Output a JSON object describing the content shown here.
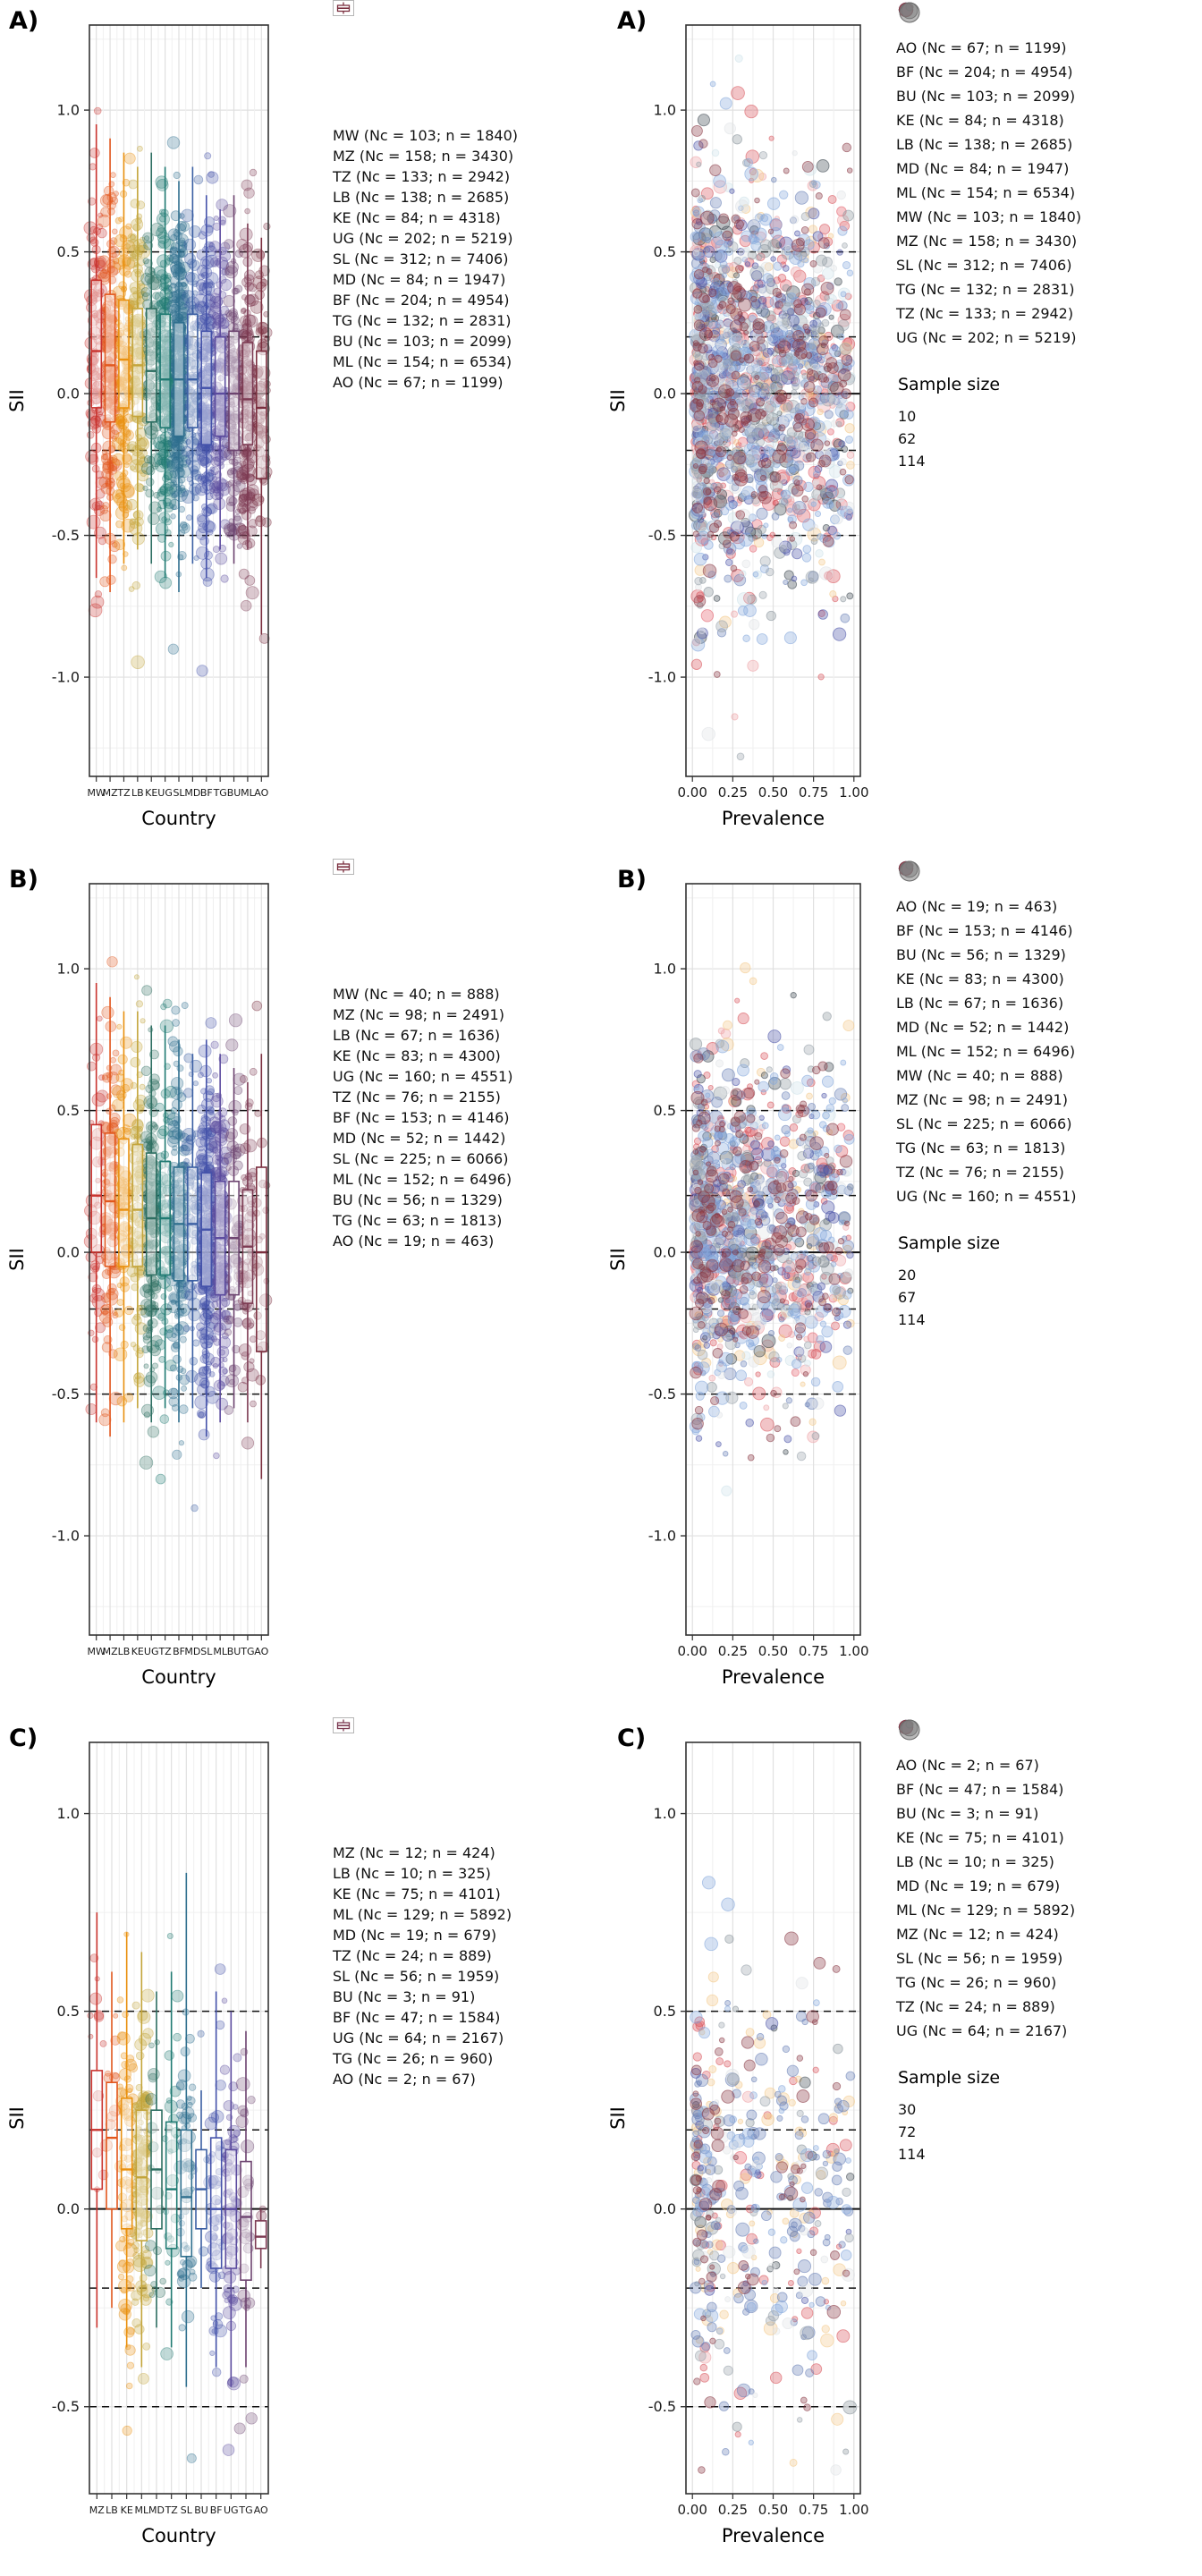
{
  "style": {
    "background": "#ffffff",
    "panel_border": "#333333",
    "grid_major": "#e0e0e0",
    "grid_minor": "#f0f0f0",
    "ref_line": "#111111",
    "text": "#1a1a1a",
    "size_legend_fill": "#808080",
    "box_colors": [
      "#c9342f",
      "#e2571d",
      "#e99110",
      "#c3a43a",
      "#2e6f62",
      "#1f7a72",
      "#2f6f8e",
      "#3b5fa3",
      "#4452aa",
      "#5b4b9e",
      "#6d4470",
      "#7c3a52",
      "#7b2f3f"
    ],
    "country_colors": {
      "AO": "#e4606d",
      "BF": "#d9575e",
      "BU": "#eda2a6",
      "KE": "#f3c98b",
      "LB": "#3f4a52",
      "MD": "#8a949c",
      "ML": "#6b82b8",
      "MW": "#cfe3ea",
      "MZ": "#4d55a8",
      "SL": "#86a8dc",
      "TG": "#dfe3e6",
      "TZ": "#9aa3ab",
      "UG": "#8a3a46"
    }
  },
  "chart_data": [
    {
      "id": "A",
      "panel_label": "A)",
      "type": "box+scatter",
      "ylabel": "SII",
      "ylim": [
        -1.35,
        1.3
      ],
      "yticks": [
        {
          "v": 1.0,
          "t": "1.0"
        },
        {
          "v": 0.5,
          "t": "0.5"
        },
        {
          "v": 0.0,
          "t": "0.0"
        },
        {
          "v": -0.5,
          "t": "-0.5"
        },
        {
          "v": -1.0,
          "t": "-1.0"
        }
      ],
      "ref_dashed": [
        0.5,
        0.2,
        -0.2,
        -0.5
      ],
      "ref_solid": 0,
      "box": {
        "xlabel": "Country"
      },
      "scatter": {
        "xlabel": "Prevalence",
        "xticks": [
          {
            "v": 0.0,
            "t": "0.00"
          },
          {
            "v": 0.25,
            "t": "0.25"
          },
          {
            "v": 0.5,
            "t": "0.50"
          },
          {
            "v": 0.75,
            "t": "0.75"
          },
          {
            "v": 1.0,
            "t": "1.00"
          }
        ],
        "order": [
          "AO",
          "BF",
          "BU",
          "KE",
          "LB",
          "MD",
          "ML",
          "MW",
          "MZ",
          "SL",
          "TG",
          "TZ",
          "UG"
        ]
      },
      "size_legend": {
        "title": "Sample size",
        "values": [
          "10",
          "62",
          "114"
        ],
        "numeric": [
          10,
          62,
          114
        ]
      },
      "countries": [
        {
          "code": "MW",
          "nc": 103,
          "n": 1840,
          "label": "MW (Nc = 103; n = 1840)",
          "box": [
            -0.65,
            -0.05,
            0.15,
            0.4,
            0.95
          ]
        },
        {
          "code": "MZ",
          "nc": 158,
          "n": 3430,
          "label": "MZ (Nc = 158; n = 3430)",
          "box": [
            -0.7,
            -0.1,
            0.1,
            0.35,
            0.9
          ]
        },
        {
          "code": "TZ",
          "nc": 133,
          "n": 2942,
          "label": "TZ (Nc = 133; n = 2942)",
          "box": [
            -0.6,
            -0.05,
            0.12,
            0.33,
            0.85
          ]
        },
        {
          "code": "LB",
          "nc": 138,
          "n": 2685,
          "label": "LB (Nc = 138; n = 2685)",
          "box": [
            -0.55,
            -0.08,
            0.1,
            0.3,
            0.8
          ]
        },
        {
          "code": "KE",
          "nc": 84,
          "n": 4318,
          "label": "KE (Nc = 84; n = 4318)",
          "box": [
            -0.6,
            -0.1,
            0.08,
            0.3,
            0.85
          ]
        },
        {
          "code": "UG",
          "nc": 202,
          "n": 5219,
          "label": "UG (Nc = 202; n = 5219)",
          "box": [
            -0.65,
            -0.12,
            0.05,
            0.28,
            0.8
          ]
        },
        {
          "code": "SL",
          "nc": 312,
          "n": 7406,
          "label": "SL (Nc = 312; n = 7406)",
          "box": [
            -0.7,
            -0.15,
            0.05,
            0.25,
            0.75
          ]
        },
        {
          "code": "MD",
          "nc": 84,
          "n": 1947,
          "label": "MD (Nc = 84; n = 1947)",
          "box": [
            -0.6,
            -0.12,
            0.05,
            0.28,
            0.8
          ]
        },
        {
          "code": "BF",
          "nc": 204,
          "n": 4954,
          "label": "BF (Nc = 204; n = 4954)",
          "box": [
            -0.65,
            -0.18,
            0.02,
            0.22,
            0.7
          ]
        },
        {
          "code": "TG",
          "nc": 132,
          "n": 2831,
          "label": "TG (Nc = 132; n = 2831)",
          "box": [
            -0.55,
            -0.15,
            0.0,
            0.2,
            0.65
          ]
        },
        {
          "code": "BU",
          "nc": 103,
          "n": 2099,
          "label": "BU (Nc = 103; n = 2099)",
          "box": [
            -0.6,
            -0.2,
            0.0,
            0.22,
            0.7
          ]
        },
        {
          "code": "ML",
          "nc": 154,
          "n": 6534,
          "label": "ML (Nc = 154; n = 6534)",
          "box": [
            -0.55,
            -0.18,
            -0.02,
            0.18,
            0.6
          ]
        },
        {
          "code": "AO",
          "nc": 67,
          "n": 1199,
          "label": "AO (Nc = 67; n = 1199)",
          "box": [
            -0.85,
            -0.3,
            -0.05,
            0.15,
            0.55
          ]
        }
      ]
    },
    {
      "id": "B",
      "panel_label": "B)",
      "type": "box+scatter",
      "ylabel": "SII",
      "ylim": [
        -1.35,
        1.3
      ],
      "yticks": [
        {
          "v": 1.0,
          "t": "1.0"
        },
        {
          "v": 0.5,
          "t": "0.5"
        },
        {
          "v": 0.0,
          "t": "0.0"
        },
        {
          "v": -0.5,
          "t": "-0.5"
        },
        {
          "v": -1.0,
          "t": "-1.0"
        }
      ],
      "ref_dashed": [
        0.5,
        0.2,
        -0.2,
        -0.5
      ],
      "ref_solid": 0,
      "box": {
        "xlabel": "Country"
      },
      "scatter": {
        "xlabel": "Prevalence",
        "xticks": [
          {
            "v": 0.0,
            "t": "0.00"
          },
          {
            "v": 0.25,
            "t": "0.25"
          },
          {
            "v": 0.5,
            "t": "0.50"
          },
          {
            "v": 0.75,
            "t": "0.75"
          },
          {
            "v": 1.0,
            "t": "1.00"
          }
        ],
        "order": [
          "AO",
          "BF",
          "BU",
          "KE",
          "LB",
          "MD",
          "ML",
          "MW",
          "MZ",
          "SL",
          "TG",
          "TZ",
          "UG"
        ]
      },
      "size_legend": {
        "title": "Sample size",
        "values": [
          "20",
          "67",
          "114"
        ],
        "numeric": [
          20,
          67,
          114
        ]
      },
      "countries": [
        {
          "code": "MW",
          "nc": 40,
          "n": 888,
          "label": "MW (Nc = 40; n = 888)",
          "box": [
            -0.6,
            0.0,
            0.2,
            0.45,
            0.95
          ]
        },
        {
          "code": "MZ",
          "nc": 98,
          "n": 2491,
          "label": "MZ (Nc = 98; n = 2491)",
          "box": [
            -0.65,
            -0.05,
            0.18,
            0.42,
            0.9
          ]
        },
        {
          "code": "LB",
          "nc": 67,
          "n": 1636,
          "label": "LB (Nc = 67; n = 1636)",
          "box": [
            -0.6,
            -0.05,
            0.15,
            0.4,
            0.85
          ]
        },
        {
          "code": "KE",
          "nc": 83,
          "n": 4300,
          "label": "KE (Nc = 83; n = 4300)",
          "box": [
            -0.55,
            -0.05,
            0.15,
            0.38,
            0.85
          ]
        },
        {
          "code": "UG",
          "nc": 160,
          "n": 4551,
          "label": "UG (Nc = 160; n = 4551)",
          "box": [
            -0.6,
            -0.08,
            0.12,
            0.35,
            0.8
          ]
        },
        {
          "code": "TZ",
          "nc": 76,
          "n": 2155,
          "label": "TZ (Nc = 76; n = 2155)",
          "box": [
            -0.55,
            -0.08,
            0.12,
            0.32,
            0.8
          ]
        },
        {
          "code": "BF",
          "nc": 153,
          "n": 4146,
          "label": "BF (Nc = 153; n = 4146)",
          "box": [
            -0.6,
            -0.1,
            0.1,
            0.3,
            0.75
          ]
        },
        {
          "code": "MD",
          "nc": 52,
          "n": 1442,
          "label": "MD (Nc = 52; n = 1442)",
          "box": [
            -0.55,
            -0.1,
            0.1,
            0.3,
            0.7
          ]
        },
        {
          "code": "SL",
          "nc": 225,
          "n": 6066,
          "label": "SL (Nc = 225; n = 6066)",
          "box": [
            -0.65,
            -0.12,
            0.08,
            0.28,
            0.75
          ]
        },
        {
          "code": "ML",
          "nc": 152,
          "n": 6496,
          "label": "ML (Nc = 152; n = 6496)",
          "box": [
            -0.6,
            -0.15,
            0.05,
            0.25,
            0.7
          ]
        },
        {
          "code": "BU",
          "nc": 56,
          "n": 1329,
          "label": "BU (Nc = 56; n = 1329)",
          "box": [
            -0.55,
            -0.15,
            0.05,
            0.25,
            0.65
          ]
        },
        {
          "code": "TG",
          "nc": 63,
          "n": 1813,
          "label": "TG (Nc = 63; n = 1813)",
          "box": [
            -0.6,
            -0.18,
            0.02,
            0.22,
            0.6
          ]
        },
        {
          "code": "AO",
          "nc": 19,
          "n": 463,
          "label": "AO (Nc = 19; n = 463)",
          "box": [
            -0.8,
            -0.35,
            0.0,
            0.3,
            0.7
          ]
        }
      ]
    },
    {
      "id": "C",
      "panel_label": "C)",
      "type": "box+scatter",
      "ylabel": "SII",
      "ylim": [
        -0.72,
        1.18
      ],
      "yticks": [
        {
          "v": 1.0,
          "t": "1.0"
        },
        {
          "v": 0.5,
          "t": "0.5"
        },
        {
          "v": 0.0,
          "t": "0.0"
        },
        {
          "v": -0.5,
          "t": "-0.5"
        }
      ],
      "ref_dashed": [
        0.5,
        0.2,
        -0.2,
        -0.5
      ],
      "ref_solid": 0,
      "box": {
        "xlabel": "Country"
      },
      "scatter": {
        "xlabel": "Prevalence",
        "xticks": [
          {
            "v": 0.0,
            "t": "0.00"
          },
          {
            "v": 0.25,
            "t": "0.25"
          },
          {
            "v": 0.5,
            "t": "0.50"
          },
          {
            "v": 0.75,
            "t": "0.75"
          },
          {
            "v": 1.0,
            "t": "1.00"
          }
        ],
        "order": [
          "AO",
          "BF",
          "BU",
          "KE",
          "LB",
          "MD",
          "ML",
          "MZ",
          "SL",
          "TG",
          "TZ",
          "UG"
        ]
      },
      "size_legend": {
        "title": "Sample size",
        "values": [
          "30",
          "72",
          "114"
        ],
        "numeric": [
          30,
          72,
          114
        ]
      },
      "countries": [
        {
          "code": "MZ",
          "nc": 12,
          "n": 424,
          "label": "MZ (Nc = 12; n = 424)",
          "box": [
            -0.3,
            0.05,
            0.2,
            0.35,
            0.75
          ]
        },
        {
          "code": "LB",
          "nc": 10,
          "n": 325,
          "label": "LB (Nc = 10; n = 325)",
          "box": [
            -0.25,
            0.0,
            0.18,
            0.32,
            0.6
          ]
        },
        {
          "code": "KE",
          "nc": 75,
          "n": 4101,
          "label": "KE (Nc = 75; n = 4101)",
          "box": [
            -0.35,
            -0.05,
            0.1,
            0.28,
            0.7
          ]
        },
        {
          "code": "ML",
          "nc": 129,
          "n": 5892,
          "label": "ML (Nc = 129; n = 5892)",
          "box": [
            -0.4,
            -0.08,
            0.08,
            0.25,
            0.65
          ]
        },
        {
          "code": "MD",
          "nc": 19,
          "n": 679,
          "label": "MD (Nc = 19; n = 679)",
          "box": [
            -0.3,
            -0.05,
            0.1,
            0.25,
            0.55
          ]
        },
        {
          "code": "TZ",
          "nc": 24,
          "n": 889,
          "label": "TZ (Nc = 24; n = 889)",
          "box": [
            -0.35,
            -0.1,
            0.05,
            0.22,
            0.6
          ]
        },
        {
          "code": "SL",
          "nc": 56,
          "n": 1959,
          "label": "SL (Nc = 56; n = 1959)",
          "box": [
            -0.45,
            -0.12,
            0.03,
            0.2,
            0.85
          ]
        },
        {
          "code": "BU",
          "nc": 3,
          "n": 91,
          "label": "BU (Nc = 3; n = 91)",
          "box": [
            -0.2,
            -0.05,
            0.05,
            0.15,
            0.3
          ]
        },
        {
          "code": "BF",
          "nc": 47,
          "n": 1584,
          "label": "BF (Nc = 47; n = 1584)",
          "box": [
            -0.4,
            -0.15,
            0.0,
            0.18,
            0.55
          ]
        },
        {
          "code": "UG",
          "nc": 64,
          "n": 2167,
          "label": "UG (Nc = 64; n = 2167)",
          "box": [
            -0.45,
            -0.15,
            0.0,
            0.15,
            0.5
          ]
        },
        {
          "code": "TG",
          "nc": 26,
          "n": 960,
          "label": "TG (Nc = 26; n = 960)",
          "box": [
            -0.4,
            -0.18,
            -0.02,
            0.12,
            0.45
          ]
        },
        {
          "code": "AO",
          "nc": 2,
          "n": 67,
          "label": "AO (Nc = 2; n = 67)",
          "box": [
            -0.15,
            -0.1,
            -0.07,
            -0.03,
            0.0
          ]
        }
      ]
    }
  ]
}
